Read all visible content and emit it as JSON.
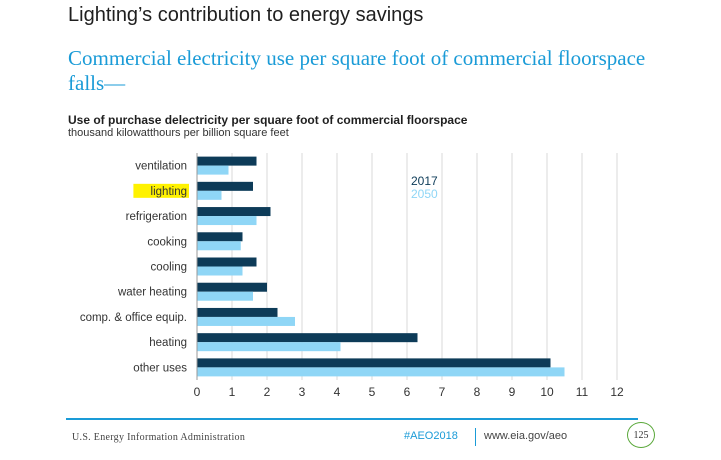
{
  "slide": {
    "heading": "Lighting’s contribution to energy savings",
    "subtitle": "Commercial electricity use per square foot of commercial floorspace falls—"
  },
  "footer": {
    "agency": "U.S. Energy Information Administration",
    "hashtag": "#AEO2018",
    "url": "www.eia.gov/aeo",
    "page_number": "125"
  },
  "colors": {
    "series_2017": "#0d3b58",
    "series_2050": "#8fd6f6",
    "highlight": "#fff200",
    "accent": "#1a9bd7"
  },
  "chart_data": {
    "type": "bar",
    "orientation": "horizontal",
    "title": "Use of purchase delectricity per square foot of commercial floorspace",
    "subtitle": "thousand kilowatthours per billion square feet",
    "categories": [
      "ventilation",
      "lighting",
      "refrigeration",
      "cooking",
      "cooling",
      "water heating",
      "comp. & office equip.",
      "heating",
      "other uses"
    ],
    "highlighted_category": "lighting",
    "series": [
      {
        "name": "2017",
        "values": [
          1.7,
          1.6,
          2.1,
          1.3,
          1.7,
          2.0,
          2.3,
          6.3,
          10.1
        ]
      },
      {
        "name": "2050",
        "values": [
          0.9,
          0.7,
          1.7,
          1.25,
          1.3,
          1.6,
          2.8,
          4.1,
          10.5
        ]
      }
    ],
    "x_ticks": [
      0,
      1,
      2,
      3,
      4,
      5,
      6,
      7,
      8,
      9,
      10,
      11,
      12
    ],
    "xlim": [
      0,
      12
    ],
    "grid": true,
    "legend_position": "top-right"
  }
}
